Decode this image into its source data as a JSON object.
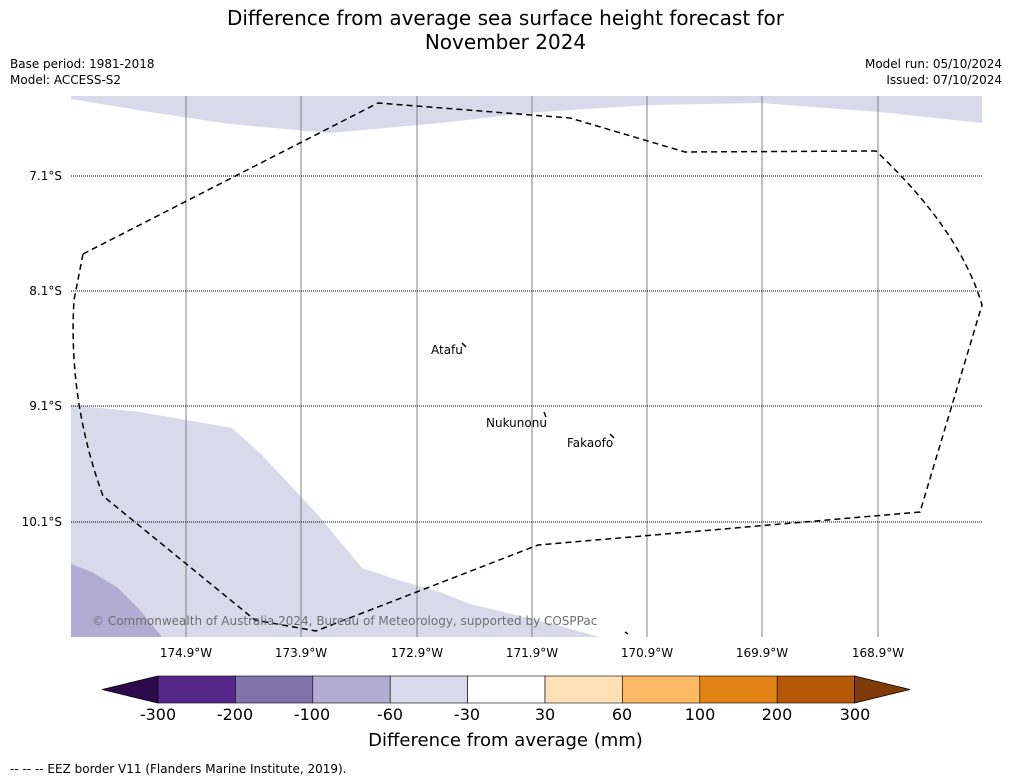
{
  "title": {
    "line1": "Difference from average sea surface height forecast for",
    "line2": "November 2024"
  },
  "meta": {
    "base_period": "Base period: 1981-2018",
    "model": "Model: ACCESS-S2",
    "model_run": "Model run: 05/10/2024",
    "issued": "Issued: 07/10/2024"
  },
  "map": {
    "lat_labels": [
      "7.1°S",
      "8.1°S",
      "9.1°S",
      "10.1°S"
    ],
    "lon_labels": [
      "174.9°W",
      "173.9°W",
      "172.9°W",
      "171.9°W",
      "170.9°W",
      "169.9°W",
      "168.9°W"
    ],
    "places": [
      "Atafu",
      "Nukunonu",
      "Fakaofo"
    ],
    "copyright": "© Commonwealth of Australia 2024, Bureau of Meteorology, supported by COSPPac"
  },
  "colorbar": {
    "ticks": [
      "-300",
      "-200",
      "-100",
      "-60",
      "-30",
      "30",
      "60",
      "100",
      "200",
      "300"
    ],
    "colors": [
      "#2d0a4d",
      "#542788",
      "#8073ac",
      "#b2abd2",
      "#d8daeb",
      "#ffffff",
      "#fee0b6",
      "#fdb863",
      "#e08214",
      "#b35806",
      "#7f3b08"
    ],
    "label": "Difference from average (mm)"
  },
  "footer": "--  --  -- EEZ border V11 (Flanders Marine Institute, 2019)."
}
